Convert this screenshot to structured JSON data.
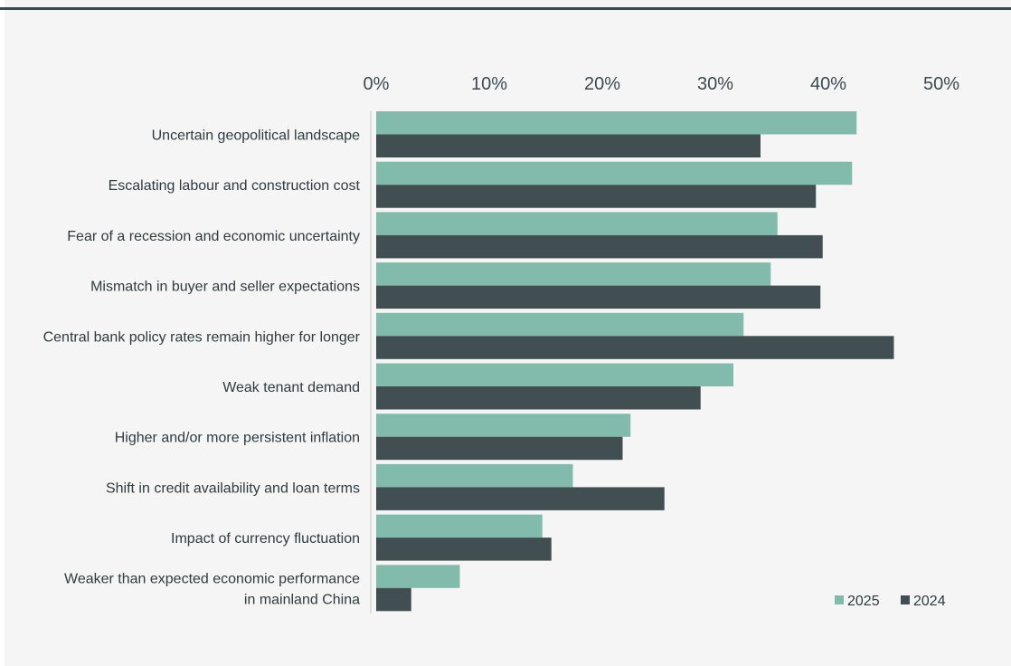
{
  "chart_data": {
    "type": "bar",
    "orientation": "horizontal",
    "categories": [
      [
        "Uncertain geopolitical landscape"
      ],
      [
        "Escalating labour and construction cost"
      ],
      [
        "Fear of a recession and economic uncertainty"
      ],
      [
        "Mismatch in buyer and seller expectations"
      ],
      [
        "Central bank policy rates remain higher for longer"
      ],
      [
        "Weak tenant demand"
      ],
      [
        "Higher and/or more persistent inflation"
      ],
      [
        "Shift in credit availability and loan terms"
      ],
      [
        "Impact of currency fluctuation"
      ],
      [
        "Weaker than expected economic performance",
        "in mainland China"
      ]
    ],
    "series": [
      {
        "name": "2025",
        "color": "#82bbab",
        "values": [
          42.5,
          42.1,
          35.5,
          34.9,
          32.5,
          31.6,
          22.5,
          17.4,
          14.7,
          7.4
        ]
      },
      {
        "name": "2024",
        "color": "#414f52",
        "values": [
          34.0,
          38.9,
          39.5,
          39.3,
          45.8,
          28.7,
          21.8,
          25.5,
          15.5,
          3.1
        ]
      }
    ],
    "xlim": [
      0,
      50
    ],
    "xticks": [
      0,
      10,
      20,
      30,
      40,
      50
    ],
    "tick_format": "%",
    "grid": false,
    "legend_position": "bottom-right"
  }
}
